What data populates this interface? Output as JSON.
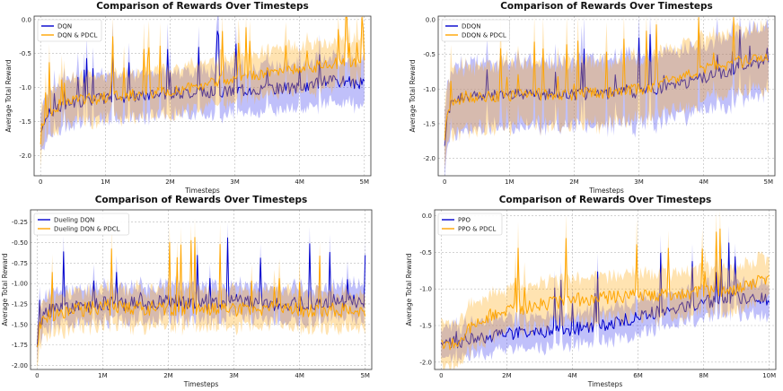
{
  "colors": {
    "series_a": "#0000cc",
    "series_b": "#ffa500",
    "band_a": "#4a4af0",
    "band_b": "#ffb020"
  },
  "chart_data": [
    {
      "type": "line",
      "title": "Comparison of Rewards Over Timesteps",
      "xlabel": "Timesteps",
      "ylabel": "Average Total Reward",
      "xlim": [
        -100000,
        5100000
      ],
      "ylim": [
        -2.3,
        0.05
      ],
      "xticks": [
        0,
        1000000,
        2000000,
        3000000,
        4000000,
        5000000
      ],
      "xtick_labels": [
        "0",
        "1M",
        "2M",
        "3M",
        "4M",
        "5M"
      ],
      "yticks": [
        -2.0,
        -1.5,
        -1.0,
        -0.5,
        0.0
      ],
      "ytick_labels": [
        "-2.0",
        "-1.5",
        "-1.0",
        "-0.5",
        "0.0"
      ],
      "legend": "top-left",
      "series": [
        {
          "name": "DQN",
          "x": [
            0,
            30000,
            100000,
            300000,
            600000,
            1000000,
            1500000,
            2000000,
            2500000,
            3000000,
            3500000,
            4000000,
            4500000,
            5000000
          ],
          "values": [
            -1.72,
            -1.55,
            -1.4,
            -1.28,
            -1.2,
            -1.15,
            -1.12,
            -1.08,
            -1.07,
            -1.05,
            -1.02,
            -1.0,
            -0.9,
            -0.95
          ],
          "band": 0.33
        },
        {
          "name": "DQN & PDCL",
          "x": [
            0,
            30000,
            100000,
            300000,
            600000,
            1000000,
            1500000,
            2000000,
            2500000,
            3000000,
            3500000,
            4000000,
            4500000,
            5000000
          ],
          "values": [
            -1.78,
            -1.5,
            -1.38,
            -1.25,
            -1.18,
            -1.15,
            -1.1,
            -1.05,
            -0.98,
            -0.85,
            -0.78,
            -0.72,
            -0.65,
            -0.62
          ],
          "band": 0.33
        }
      ]
    },
    {
      "type": "line",
      "title": "Comparison of Rewards Over Timesteps",
      "xlabel": "Timesteps",
      "ylabel": "Average Total Reward",
      "xlim": [
        -100000,
        5100000
      ],
      "ylim": [
        -2.25,
        0.05
      ],
      "xticks": [
        0,
        1000000,
        2000000,
        3000000,
        4000000,
        5000000
      ],
      "xtick_labels": [
        "0",
        "1M",
        "2M",
        "3M",
        "4M",
        "5M"
      ],
      "yticks": [
        -2.0,
        -1.5,
        -1.0,
        -0.5,
        0.0
      ],
      "ytick_labels": [
        "-2.0",
        "-1.5",
        "-1.0",
        "-0.5",
        "0.0"
      ],
      "legend": "top-left",
      "series": [
        {
          "name": "DDQN",
          "x": [
            0,
            30000,
            100000,
            300000,
            600000,
            1000000,
            1500000,
            2000000,
            2500000,
            3000000,
            3500000,
            4000000,
            4500000,
            5000000
          ],
          "values": [
            -1.75,
            -1.45,
            -1.2,
            -1.12,
            -1.1,
            -1.09,
            -1.08,
            -1.07,
            -1.06,
            -1.04,
            -0.95,
            -0.85,
            -0.7,
            -0.6
          ],
          "band": 0.48
        },
        {
          "name": "DDQN & PDCL",
          "x": [
            0,
            30000,
            100000,
            300000,
            600000,
            1000000,
            1500000,
            2000000,
            2500000,
            3000000,
            3500000,
            4000000,
            4500000,
            5000000
          ],
          "values": [
            -1.72,
            -1.4,
            -1.18,
            -1.11,
            -1.1,
            -1.09,
            -1.08,
            -1.07,
            -1.05,
            -1.0,
            -0.88,
            -0.72,
            -0.62,
            -0.55
          ],
          "band": 0.45
        }
      ]
    },
    {
      "type": "line",
      "title": "Comparison of Rewards Over Timesteps",
      "xlabel": "Timesteps",
      "ylabel": "Average Total Reward",
      "xlim": [
        -100000,
        5100000
      ],
      "ylim": [
        -2.05,
        -0.1
      ],
      "xticks": [
        0,
        1000000,
        2000000,
        3000000,
        4000000,
        5000000
      ],
      "xtick_labels": [
        "0",
        "1M",
        "2M",
        "3M",
        "4M",
        "5M"
      ],
      "yticks": [
        -2.0,
        -1.75,
        -1.5,
        -1.25,
        -1.0,
        -0.75,
        -0.5,
        -0.25
      ],
      "ytick_labels": [
        "-2.00",
        "-1.75",
        "-1.50",
        "-1.25",
        "-1.00",
        "-0.75",
        "-0.50",
        "-0.25"
      ],
      "legend": "top-left",
      "series": [
        {
          "name": "Dueling DQN",
          "x": [
            0,
            30000,
            100000,
            300000,
            600000,
            1000000,
            1500000,
            2000000,
            2500000,
            3000000,
            3500000,
            4000000,
            4500000,
            5000000
          ],
          "values": [
            -1.75,
            -1.55,
            -1.35,
            -1.3,
            -1.28,
            -1.25,
            -1.25,
            -1.22,
            -1.25,
            -1.22,
            -1.25,
            -1.25,
            -1.22,
            -1.2
          ],
          "band": 0.2
        },
        {
          "name": "Dueling DQN & PDCL",
          "x": [
            0,
            30000,
            100000,
            300000,
            600000,
            1000000,
            1500000,
            2000000,
            2500000,
            3000000,
            3500000,
            4000000,
            4500000,
            5000000
          ],
          "values": [
            -1.8,
            -1.6,
            -1.42,
            -1.35,
            -1.32,
            -1.3,
            -1.3,
            -1.3,
            -1.3,
            -1.32,
            -1.3,
            -1.32,
            -1.32,
            -1.35
          ],
          "band": 0.22
        }
      ]
    },
    {
      "type": "line",
      "title": "Comparison of Rewards Over Timesteps",
      "xlabel": "Timesteps",
      "ylabel": "Average Total Reward",
      "xlim": [
        -200000,
        10200000
      ],
      "ylim": [
        -2.1,
        0.08
      ],
      "xticks": [
        0,
        2000000,
        4000000,
        6000000,
        8000000,
        10000000
      ],
      "xtick_labels": [
        "0",
        "2M",
        "4M",
        "6M",
        "8M",
        "10M"
      ],
      "yticks": [
        -2.0,
        -1.5,
        -1.0,
        -0.5,
        0.0
      ],
      "ytick_labels": [
        "-2.0",
        "-1.5",
        "-1.0",
        "-0.5",
        "0.0"
      ],
      "legend": "top-left",
      "series": [
        {
          "name": "PPO",
          "x": [
            0,
            500000,
            1000000,
            2000000,
            3000000,
            4000000,
            5000000,
            6000000,
            7000000,
            8000000,
            9000000,
            10000000
          ],
          "values": [
            -1.75,
            -1.72,
            -1.68,
            -1.62,
            -1.58,
            -1.55,
            -1.5,
            -1.38,
            -1.28,
            -1.18,
            -1.12,
            -1.15
          ],
          "band": 0.22
        },
        {
          "name": "PPO & PDCL",
          "x": [
            0,
            500000,
            1000000,
            2000000,
            3000000,
            4000000,
            5000000,
            6000000,
            7000000,
            8000000,
            9000000,
            10000000
          ],
          "values": [
            -1.78,
            -1.75,
            -1.45,
            -1.3,
            -1.22,
            -1.15,
            -1.12,
            -1.1,
            -1.08,
            -1.05,
            -1.0,
            -0.85
          ],
          "band": 0.3
        }
      ]
    }
  ]
}
